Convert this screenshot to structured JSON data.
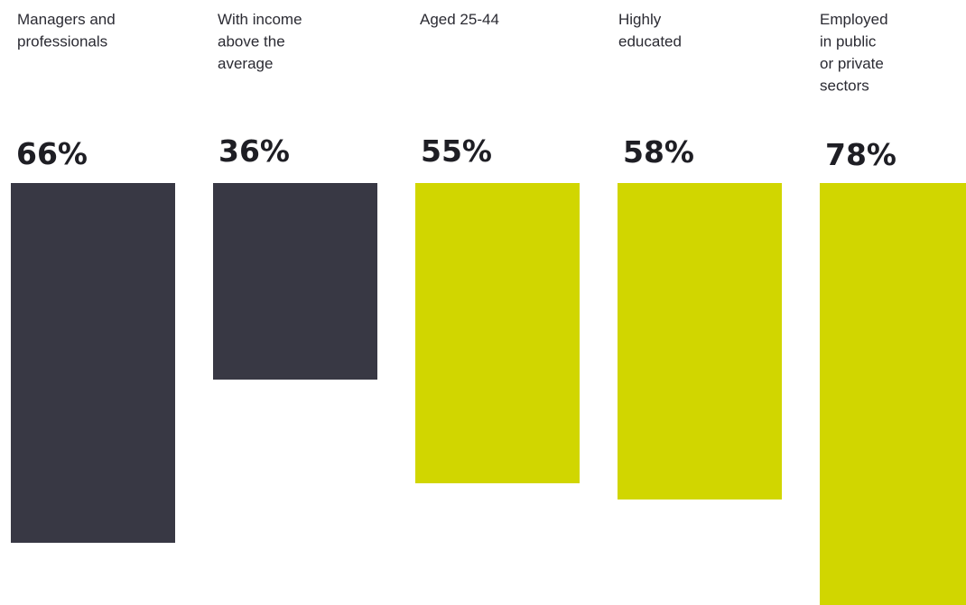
{
  "chart_data": {
    "type": "bar",
    "categories": [
      [
        "Managers and",
        "professionals"
      ],
      [
        "With income",
        "above the",
        "average"
      ],
      [
        "Aged 25-44"
      ],
      [
        "Highly",
        "educated"
      ],
      [
        "Employed",
        "in public",
        "or private",
        "sectors"
      ]
    ],
    "values": [
      66,
      36,
      55,
      58,
      78
    ],
    "value_labels": [
      "66%",
      "36%",
      "55%",
      "58%",
      "78%"
    ],
    "bar_colors": [
      "#383844",
      "#383844",
      "#d1d600",
      "#d1d600",
      "#d1d600"
    ],
    "ylim": [
      0,
      100
    ]
  }
}
